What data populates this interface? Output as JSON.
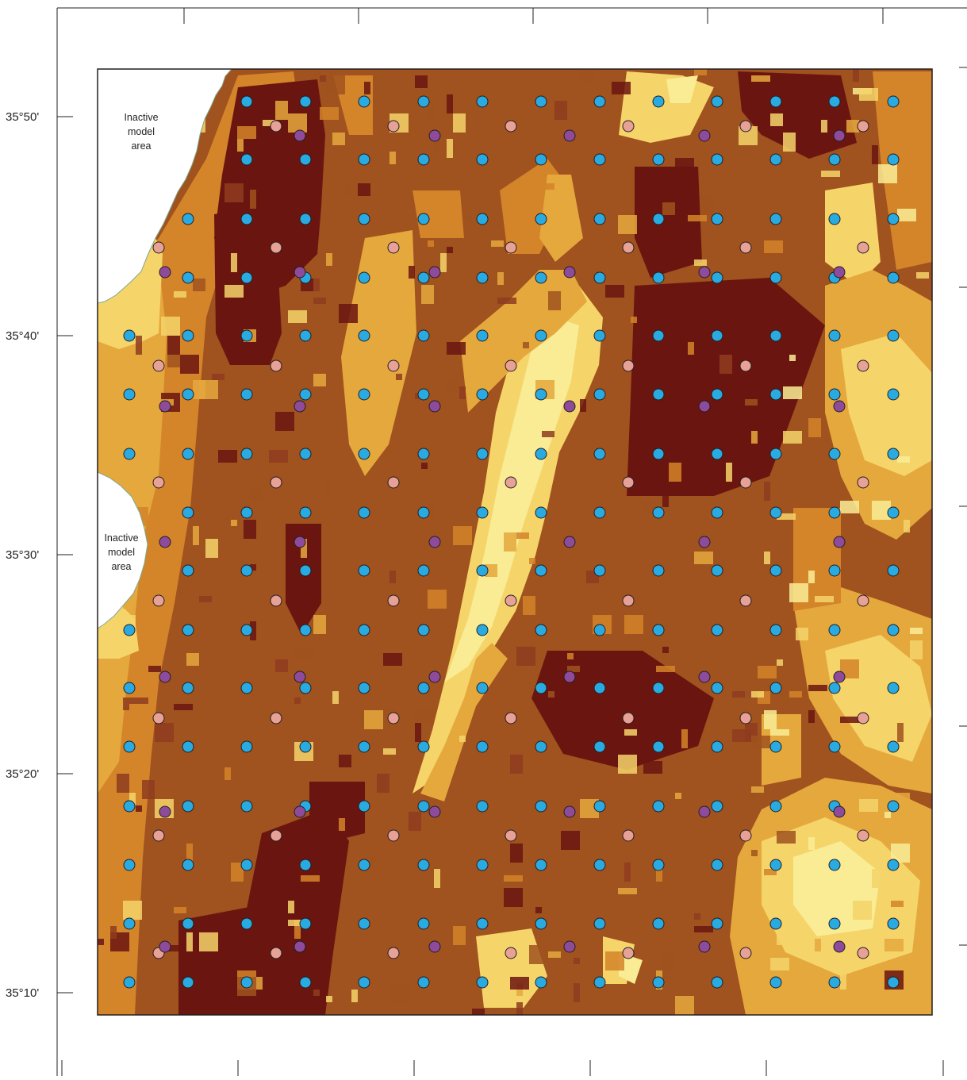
{
  "map": {
    "latitude_labels": [
      "35°50'",
      "35°40'",
      "35°30'",
      "35°20'",
      "35°10'"
    ],
    "area_labels": [
      {
        "lines": [
          "Inactive",
          "model",
          "area"
        ]
      },
      {
        "lines": [
          "Inactive",
          "model",
          "area"
        ]
      }
    ],
    "legend_colors": {
      "very_dark": "#6b1510",
      "dark": "#8e3c1f",
      "medium": "#a0521f",
      "orange": "#d48429",
      "amber": "#e5a83d",
      "yellow": "#f5d46a",
      "pale_yellow": "#f9ec95",
      "inactive_area": "#ffffff",
      "outline": "#231f20"
    },
    "point_colors": {
      "blue": "#29abe2",
      "pink": "#e8a197",
      "purple": "#8e4b9c"
    }
  }
}
